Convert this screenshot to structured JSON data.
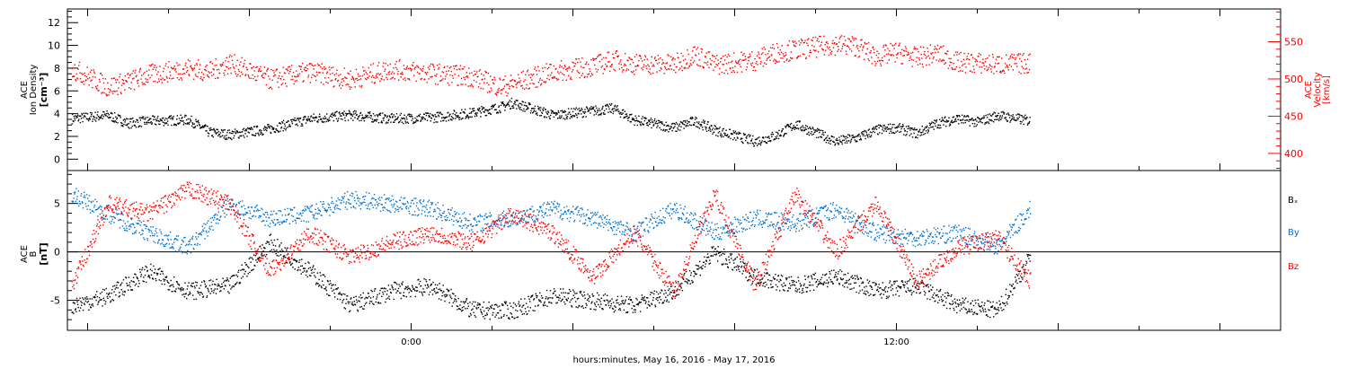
{
  "xlabel": "hours:minutes, May 16, 2016 - May 17, 2016",
  "x_ticks": [
    {
      "value": 0,
      "label": "0:00"
    },
    {
      "value": 12,
      "label": "12:00"
    }
  ],
  "x_range_hours": [
    -8.5,
    21.5
  ],
  "data_end_hours": 15.3,
  "colors": {
    "density": "#000000",
    "velocity": "#ff0000",
    "bx": "#000000",
    "by": "#0072d0",
    "bz": "#ff0000",
    "frame": "#000000"
  },
  "chart_data": [
    {
      "type": "scatter",
      "panel": "top",
      "ylabel": [
        "ACE",
        "Ion Density",
        "[cm⁻³]"
      ],
      "ylim": [
        -1,
        13.2
      ],
      "yticks": [
        0,
        2,
        4,
        6,
        8,
        10,
        12
      ],
      "y2label": [
        "ACE",
        "Velocity",
        "[km/s]"
      ],
      "y2lim": [
        377,
        594
      ],
      "y2ticks": [
        400,
        450,
        500,
        550
      ],
      "series": [
        {
          "name": "",
          "axis": "left",
          "color": "#000000",
          "x": [
            -8.4,
            -7.5,
            -7,
            -6.5,
            -5.5,
            -5,
            -4.5,
            -3.5,
            -2.5,
            -1.5,
            -0.5,
            0.5,
            1.5,
            2.2,
            2.5,
            3.5,
            4.5,
            5,
            5.5,
            6.5,
            7,
            7.5,
            8.5,
            9,
            9.5,
            10.5,
            11,
            11.5,
            12,
            12.5,
            13,
            13.5,
            14,
            14.5,
            15.3
          ],
          "y": [
            3.6,
            3.9,
            3.2,
            3.4,
            3.5,
            2.4,
            2.2,
            2.7,
            3.6,
            3.9,
            3.6,
            3.7,
            4.1,
            4.6,
            5.0,
            3.9,
            4.3,
            4.5,
            3.5,
            2.8,
            3.4,
            2.6,
            1.6,
            2.1,
            3.1,
            1.6,
            1.9,
            2.6,
            2.8,
            2.3,
            3.2,
            3.6,
            3.3,
            3.9,
            3.4
          ]
        },
        {
          "name": "",
          "axis": "right",
          "color": "#ff0000",
          "x": [
            -8.4,
            -7.5,
            -7,
            -6.5,
            -5.5,
            -5,
            -4.5,
            -3.5,
            -2.5,
            -1.5,
            -0.5,
            0.5,
            1.5,
            2.2,
            2.5,
            3.5,
            4.5,
            5,
            5.5,
            6.5,
            7,
            7.5,
            8.5,
            9,
            9.5,
            10.5,
            11,
            11.5,
            12,
            12.5,
            13,
            13.5,
            14,
            14.5,
            15.3
          ],
          "y": [
            515,
            490,
            497,
            506,
            515,
            510,
            522,
            500,
            510,
            500,
            514,
            508,
            504,
            490,
            494,
            510,
            518,
            526,
            521,
            520,
            534,
            520,
            526,
            536,
            540,
            547,
            545,
            530,
            537,
            529,
            535,
            523,
            522,
            520,
            522
          ]
        }
      ]
    },
    {
      "type": "scatter",
      "panel": "bottom",
      "ylabel": [
        "ACE",
        "B",
        "[nT]"
      ],
      "ylim": [
        -8.1,
        8.4
      ],
      "yticks": [
        -5,
        0,
        5
      ],
      "zero_line": true,
      "legend": [
        "Bₓ",
        "By",
        "Bz"
      ],
      "legend_placement": "right",
      "series": [
        {
          "name": "Bx",
          "color": "#000000",
          "x": [
            -8.4,
            -7.5,
            -6.5,
            -5.5,
            -4.5,
            -3.5,
            -2.5,
            -1.5,
            -0.5,
            0.5,
            1.5,
            2.5,
            3.5,
            4.5,
            5.5,
            6.5,
            7.5,
            8.5,
            9.5,
            10.5,
            11.5,
            12.5,
            13.5,
            14.5,
            15.3
          ],
          "y": [
            -5.5,
            -4.5,
            -2,
            -4,
            -3.5,
            1,
            -2,
            -5.5,
            -4,
            -3.5,
            -6,
            -6,
            -4.5,
            -5,
            -5.5,
            -4,
            0,
            -2.5,
            -3.5,
            -2.5,
            -4,
            -3.5,
            -5.5,
            -6,
            -0.5
          ]
        },
        {
          "name": "By",
          "color": "#0072d0",
          "x": [
            -8.4,
            -7.5,
            -6.5,
            -5.5,
            -4.5,
            -3.5,
            -2.5,
            -1.5,
            -0.5,
            0.5,
            1.5,
            2.5,
            3.5,
            4.5,
            5.5,
            6.5,
            7.5,
            8.5,
            9.5,
            10.5,
            11.5,
            12.5,
            13.5,
            14.5,
            15.3
          ],
          "y": [
            6,
            4,
            2,
            0.5,
            5,
            3.5,
            4,
            5.5,
            5,
            4.5,
            3,
            3.5,
            4.5,
            3.5,
            2,
            4.5,
            2,
            3.5,
            3,
            4.5,
            2,
            1.5,
            2,
            0.5,
            4.5
          ]
        },
        {
          "name": "Bz",
          "color": "#ff0000",
          "x": [
            -8.4,
            -7.5,
            -6.5,
            -5.5,
            -4.5,
            -3.5,
            -2.5,
            -1.5,
            -0.5,
            0.5,
            1.5,
            2.5,
            3.5,
            4.5,
            5.5,
            6.5,
            7.5,
            8.5,
            9.5,
            10.5,
            11.5,
            12.5,
            13.5,
            14.5,
            15.3
          ],
          "y": [
            -3.5,
            5,
            4,
            6.5,
            5,
            -2,
            2,
            -0.5,
            1,
            2,
            1,
            4,
            2,
            -2.5,
            2,
            -4,
            6,
            -3.5,
            6,
            0,
            5,
            -3,
            0.5,
            1.5,
            -3
          ]
        }
      ]
    }
  ]
}
